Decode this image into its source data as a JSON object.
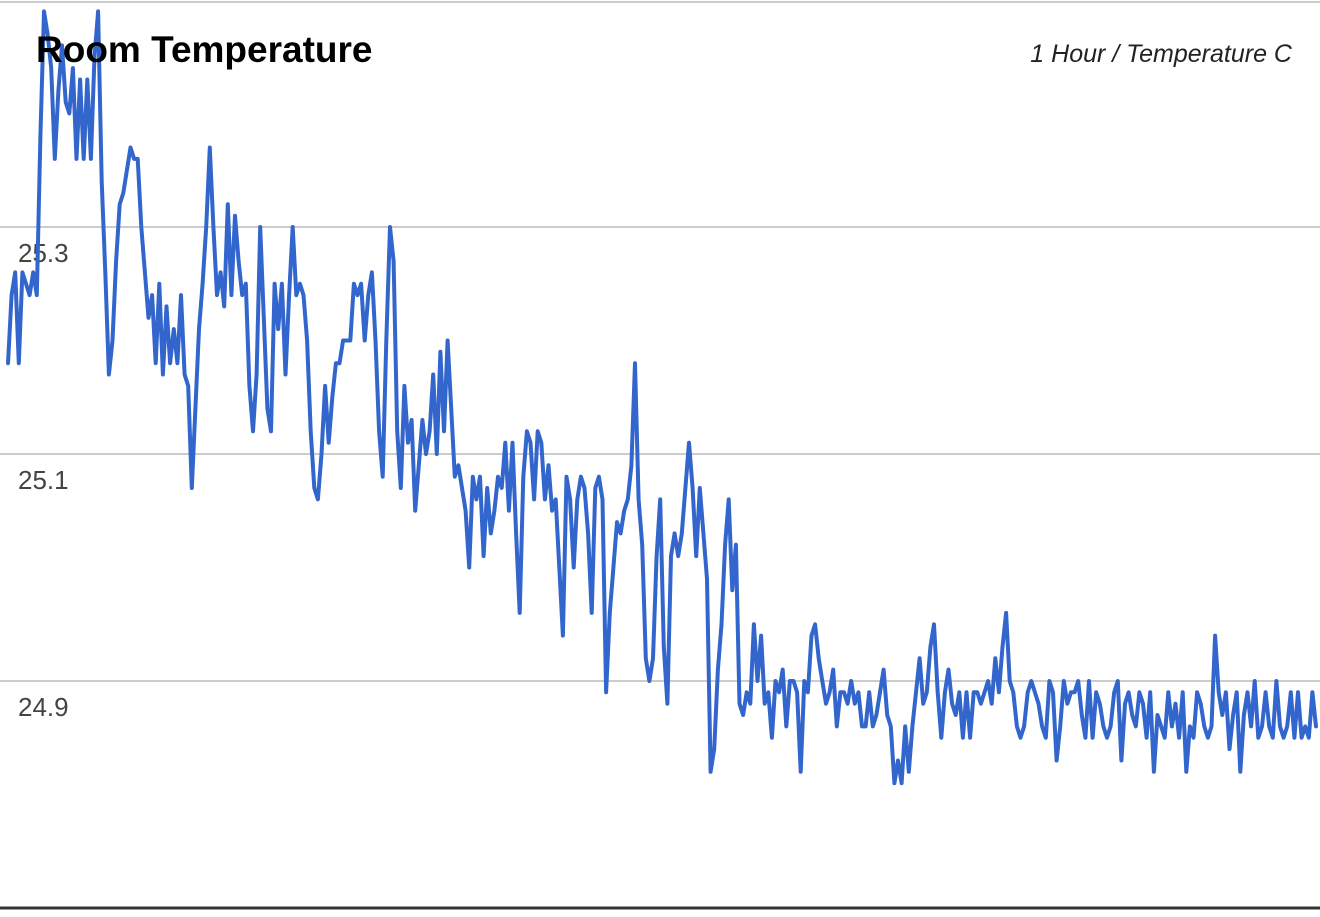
{
  "chart_data": {
    "type": "line",
    "title": "Room Temperature",
    "subtitle": "1 Hour / Temperature C",
    "xlabel": "",
    "ylabel": "",
    "ylim": [
      24.7,
      25.5
    ],
    "yticks": [
      24.9,
      25.1,
      25.3
    ],
    "grid": true,
    "colors": {
      "line": "#3366cc",
      "grid": "#cccccc",
      "baseline": "#333333"
    },
    "series": [
      {
        "values": [
          25.18,
          25.24,
          25.26,
          25.18,
          25.26,
          25.25,
          25.24,
          25.26,
          25.24,
          25.38,
          25.49,
          25.47,
          25.44,
          25.36,
          25.42,
          25.46,
          25.41,
          25.4,
          25.44,
          25.36,
          25.43,
          25.36,
          25.43,
          25.36,
          25.45,
          25.49,
          25.34,
          25.26,
          25.17,
          25.2,
          25.27,
          25.32,
          25.33,
          25.35,
          25.37,
          25.36,
          25.36,
          25.3,
          25.26,
          25.22,
          25.24,
          25.18,
          25.25,
          25.17,
          25.23,
          25.18,
          25.21,
          25.18,
          25.24,
          25.17,
          25.16,
          25.07,
          25.14,
          25.21,
          25.25,
          25.3,
          25.37,
          25.3,
          25.24,
          25.26,
          25.23,
          25.32,
          25.24,
          25.31,
          25.27,
          25.24,
          25.25,
          25.16,
          25.12,
          25.17,
          25.3,
          25.22,
          25.14,
          25.12,
          25.25,
          25.21,
          25.25,
          25.17,
          25.24,
          25.3,
          25.24,
          25.25,
          25.24,
          25.2,
          25.12,
          25.07,
          25.06,
          25.1,
          25.16,
          25.11,
          25.15,
          25.18,
          25.18,
          25.2,
          25.2,
          25.2,
          25.25,
          25.24,
          25.25,
          25.2,
          25.24,
          25.26,
          25.2,
          25.12,
          25.08,
          25.2,
          25.3,
          25.27,
          25.12,
          25.07,
          25.16,
          25.11,
          25.13,
          25.05,
          25.09,
          25.13,
          25.1,
          25.12,
          25.17,
          25.1,
          25.19,
          25.12,
          25.2,
          25.14,
          25.08,
          25.09,
          25.07,
          25.05,
          25.0,
          25.08,
          25.06,
          25.08,
          25.01,
          25.07,
          25.03,
          25.05,
          25.08,
          25.07,
          25.11,
          25.05,
          25.11,
          25.03,
          24.96,
          25.08,
          25.12,
          25.11,
          25.06,
          25.12,
          25.11,
          25.06,
          25.09,
          25.05,
          25.06,
          25.0,
          24.94,
          25.08,
          25.06,
          25.0,
          25.06,
          25.08,
          25.07,
          25.03,
          24.96,
          25.07,
          25.08,
          25.06,
          24.89,
          24.96,
          25.0,
          25.04,
          25.03,
          25.05,
          25.06,
          25.09,
          25.18,
          25.06,
          25.02,
          24.92,
          24.9,
          24.92,
          25.01,
          25.06,
          24.93,
          24.88,
          25.01,
          25.03,
          25.01,
          25.03,
          25.07,
          25.11,
          25.07,
          25.01,
          25.07,
          25.03,
          24.99,
          24.82,
          24.84,
          24.91,
          24.95,
          25.02,
          25.06,
          24.98,
          25.02,
          24.88,
          24.87,
          24.89,
          24.88,
          24.95,
          24.9,
          24.94,
          24.88,
          24.89,
          24.85,
          24.9,
          24.89,
          24.91,
          24.86,
          24.9,
          24.9,
          24.89,
          24.82,
          24.9,
          24.89,
          24.94,
          24.95,
          24.92,
          24.9,
          24.88,
          24.89,
          24.91,
          24.86,
          24.89,
          24.89,
          24.88,
          24.9,
          24.88,
          24.89,
          24.86,
          24.86,
          24.89,
          24.86,
          24.87,
          24.89,
          24.91,
          24.87,
          24.86,
          24.81,
          24.83,
          24.81,
          24.86,
          24.82,
          24.86,
          24.89,
          24.92,
          24.88,
          24.89,
          24.93,
          24.95,
          24.89,
          24.85,
          24.89,
          24.91,
          24.88,
          24.87,
          24.89,
          24.85,
          24.89,
          24.85,
          24.89,
          24.89,
          24.88,
          24.89,
          24.9,
          24.88,
          24.92,
          24.89,
          24.93,
          24.96,
          24.9,
          24.89,
          24.86,
          24.85,
          24.86,
          24.89,
          24.9,
          24.89,
          24.88,
          24.86,
          24.85,
          24.9,
          24.89,
          24.83,
          24.86,
          24.9,
          24.88,
          24.89,
          24.89,
          24.9,
          24.87,
          24.85,
          24.9,
          24.85,
          24.89,
          24.88,
          24.86,
          24.85,
          24.86,
          24.89,
          24.9,
          24.83,
          24.88,
          24.89,
          24.87,
          24.86,
          24.89,
          24.88,
          24.85,
          24.89,
          24.82,
          24.87,
          24.86,
          24.85,
          24.89,
          24.86,
          24.88,
          24.85,
          24.89,
          24.82,
          24.86,
          24.85,
          24.89,
          24.88,
          24.86,
          24.85,
          24.86,
          24.94,
          24.89,
          24.87,
          24.89,
          24.84,
          24.87,
          24.89,
          24.82,
          24.87,
          24.89,
          24.86,
          24.9,
          24.85,
          24.86,
          24.89,
          24.86,
          24.85,
          24.9,
          24.86,
          24.85,
          24.86,
          24.89,
          24.85,
          24.89,
          24.85,
          24.86,
          24.85,
          24.89,
          24.86
        ]
      }
    ]
  }
}
